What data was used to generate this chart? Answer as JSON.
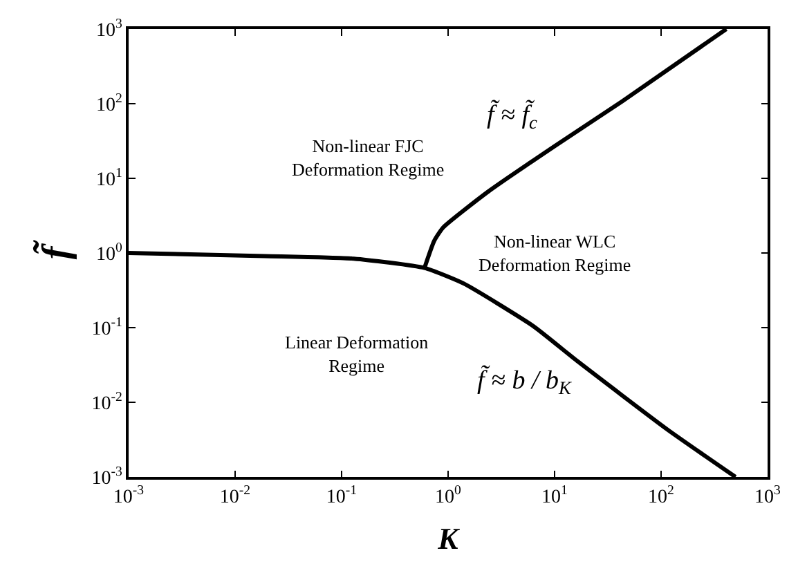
{
  "chart_data": {
    "type": "line",
    "xlabel": "K",
    "ylabel": "f̃",
    "series": [
      {
        "color": "#000000",
        "x": [
          0.001,
          0.019,
          0.13,
          0.6,
          1.4,
          6.3,
          16.6,
          115,
          500
        ],
        "values": [
          1,
          0.91,
          0.84,
          0.63,
          0.39,
          0.105,
          0.035,
          0.0043,
          0.001
        ]
      },
      {
        "color": "#000000",
        "x": [
          0.6,
          0.74,
          0.9,
          2.4,
          10,
          43,
          410
        ],
        "values": [
          0.63,
          1.45,
          2.2,
          6.7,
          27,
          107,
          1000
        ]
      }
    ],
    "annotations": [
      "Non-linear FJC\nDeformation Regime",
      "Non-linear WLC\nDeformation Regime",
      "Linear Deformation\nRegime",
      "f̃ ≈ f̃$_{c}$",
      "f̃ ≈ b / b$_{K}$"
    ],
    "log": "xy",
    "xlim": [
      0.001,
      1000
    ],
    "ylim": [
      0.001,
      1000
    ],
    "xticks": [
      {
        "value": 0.001,
        "label": "10$^{-3}$"
      },
      {
        "value": 0.01,
        "label": "10$^{-2}$"
      },
      {
        "value": 0.1,
        "label": "10$^{-1}$"
      },
      {
        "value": 1,
        "label": "10$^{0}$"
      },
      {
        "value": 10,
        "label": "10$^{1}$"
      },
      {
        "value": 100,
        "label": "10$^{2}$"
      },
      {
        "value": 1000,
        "label": "10$^{3}$"
      }
    ],
    "yticks": [
      {
        "value": 0.001,
        "label": "10$^{-3}$"
      },
      {
        "value": 0.01,
        "label": "10$^{-2}$"
      },
      {
        "value": 0.1,
        "label": "10$^{-1}$"
      },
      {
        "value": 1,
        "label": "10$^{0}$"
      },
      {
        "value": 10,
        "label": "10$^{1}$"
      },
      {
        "value": 100,
        "label": "10$^{2}$"
      },
      {
        "value": 1000,
        "label": "10$^{3}$"
      }
    ],
    "marker": "none",
    "line_style": "solid"
  }
}
